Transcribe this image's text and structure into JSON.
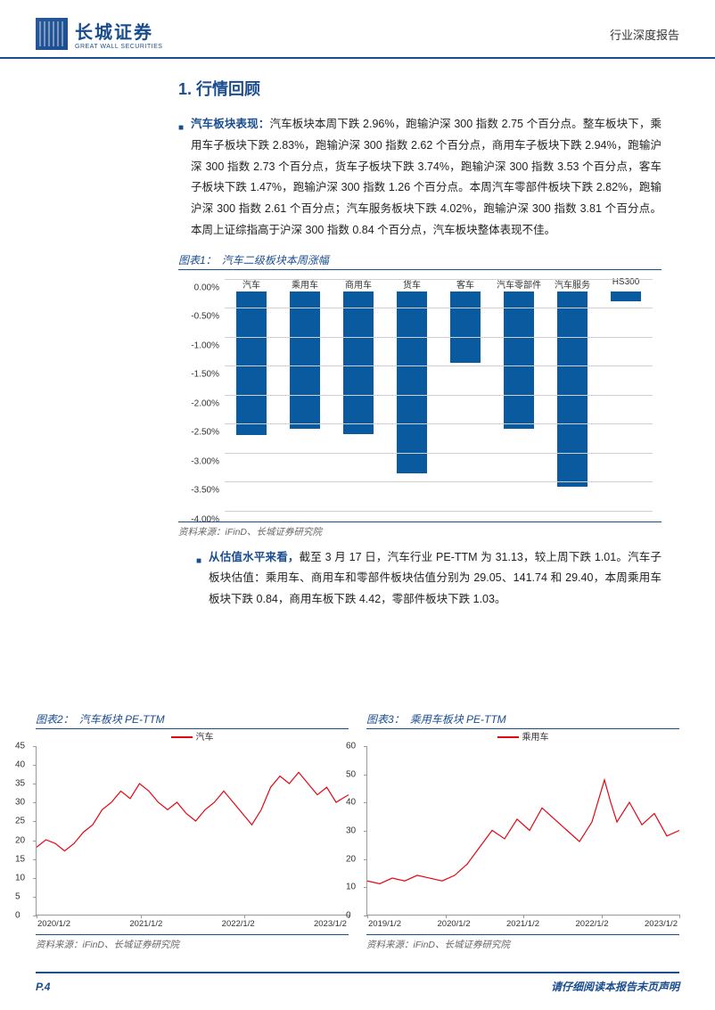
{
  "header": {
    "logo_cn": "长城证券",
    "logo_en": "GREAT WALL SECURITIES",
    "doc_type": "行业深度报告"
  },
  "section_title": "1. 行情回顾",
  "para1": {
    "lead": "汽车板块表现：",
    "body": "汽车板块本周下跌 2.96%，跑输沪深 300 指数 2.75 个百分点。整车板块下，乘用车子板块下跌 2.83%，跑输沪深 300 指数 2.62 个百分点，商用车子板块下跌 2.94%，跑输沪深 300 指数 2.73 个百分点，货车子板块下跌 3.74%，跑输沪深 300 指数 3.53 个百分点，客车子板块下跌 1.47%，跑输沪深 300 指数 1.26 个百分点。本周汽车零部件板块下跌 2.82%，跑输沪深 300 指数 2.61 个百分点；汽车服务板块下跌 4.02%，跑输沪深 300 指数 3.81 个百分点。本周上证综指高于沪深 300 指数 0.84 个百分点，汽车板块整体表现不佳。"
  },
  "chart1": {
    "label": "图表1：",
    "name": "汽车二级板块本周涨幅",
    "type": "bar",
    "categories": [
      "汽车",
      "乘用车",
      "商用车",
      "货车",
      "客车",
      "汽车零部件",
      "汽车服务",
      "HS300"
    ],
    "values": [
      -2.96,
      -2.83,
      -2.94,
      -3.74,
      -1.47,
      -2.82,
      -4.02,
      -0.21
    ],
    "bar_color": "#0a5aa0",
    "grid_color": "#d0d0d0",
    "background_color": "#ffffff",
    "ytick_labels": [
      "0.00%",
      "-0.50%",
      "-1.00%",
      "-1.50%",
      "-2.00%",
      "-2.50%",
      "-3.00%",
      "-3.50%",
      "-4.00%"
    ],
    "ymin": -4.5,
    "ymax": 0,
    "source": "资料来源：iFinD、长城证券研究院"
  },
  "para2": {
    "lead": "从估值水平来看，",
    "body": "截至 3 月 17 日，汽车行业 PE-TTM 为 31.13，较上周下跌 1.01。汽车子板块估值：乘用车、商用车和零部件板块估值分别为 29.05、141.74 和 29.40，本周乘用车板块下跌 0.84，商用车板下跌 4.42，零部件板块下跌 1.03。"
  },
  "chart2": {
    "label": "图表2：",
    "name": "汽车板块 PE-TTM",
    "type": "line",
    "legend": "汽车",
    "line_color": "#e30613",
    "yticks": [
      0,
      5,
      10,
      15,
      20,
      25,
      30,
      35,
      40,
      45
    ],
    "xticks": [
      "2020/1/2",
      "2021/1/2",
      "2022/1/2",
      "2023/1/2"
    ],
    "ylim": [
      0,
      45
    ],
    "points": [
      [
        0,
        18
      ],
      [
        3,
        20
      ],
      [
        6,
        19
      ],
      [
        9,
        17
      ],
      [
        12,
        19
      ],
      [
        15,
        22
      ],
      [
        18,
        24
      ],
      [
        21,
        28
      ],
      [
        24,
        30
      ],
      [
        27,
        33
      ],
      [
        30,
        31
      ],
      [
        33,
        35
      ],
      [
        36,
        33
      ],
      [
        39,
        30
      ],
      [
        42,
        28
      ],
      [
        45,
        30
      ],
      [
        48,
        27
      ],
      [
        51,
        25
      ],
      [
        54,
        28
      ],
      [
        57,
        30
      ],
      [
        60,
        33
      ],
      [
        63,
        30
      ],
      [
        66,
        27
      ],
      [
        69,
        24
      ],
      [
        72,
        28
      ],
      [
        75,
        34
      ],
      [
        78,
        37
      ],
      [
        81,
        35
      ],
      [
        84,
        38
      ],
      [
        87,
        35
      ],
      [
        90,
        32
      ],
      [
        93,
        34
      ],
      [
        96,
        30
      ],
      [
        100,
        32
      ]
    ],
    "source": "资料来源：iFinD、长城证券研究院"
  },
  "chart3": {
    "label": "图表3：",
    "name": "乘用车板块 PE-TTM",
    "type": "line",
    "legend": "乘用车",
    "line_color": "#e30613",
    "yticks": [
      0,
      10,
      20,
      30,
      40,
      50,
      60
    ],
    "xticks": [
      "2019/1/2",
      "2020/1/2",
      "2021/1/2",
      "2022/1/2",
      "2023/1/2"
    ],
    "ylim": [
      0,
      60
    ],
    "points": [
      [
        0,
        12
      ],
      [
        4,
        11
      ],
      [
        8,
        13
      ],
      [
        12,
        12
      ],
      [
        16,
        14
      ],
      [
        20,
        13
      ],
      [
        24,
        12
      ],
      [
        28,
        14
      ],
      [
        32,
        18
      ],
      [
        36,
        24
      ],
      [
        40,
        30
      ],
      [
        44,
        27
      ],
      [
        48,
        34
      ],
      [
        52,
        30
      ],
      [
        56,
        38
      ],
      [
        60,
        34
      ],
      [
        64,
        30
      ],
      [
        68,
        26
      ],
      [
        72,
        33
      ],
      [
        76,
        48
      ],
      [
        78,
        40
      ],
      [
        80,
        33
      ],
      [
        84,
        40
      ],
      [
        88,
        32
      ],
      [
        92,
        36
      ],
      [
        96,
        28
      ],
      [
        100,
        30
      ]
    ],
    "source": "资料来源：iFinD、长城证券研究院"
  },
  "footer": {
    "page": "P.4",
    "disclaimer": "请仔细阅读本报告末页声明"
  }
}
